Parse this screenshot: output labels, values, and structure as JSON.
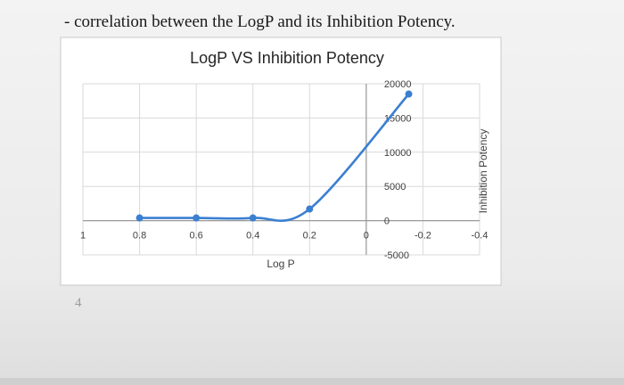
{
  "document": {
    "heading": "- correlation between the LogP and its Inhibition Potency.",
    "stray_mark": "4"
  },
  "colors": {
    "series": "#3b7fd1",
    "grid": "#d9d9d9",
    "axis": "#9a9a9a",
    "frame": "#c8c8c8",
    "text": "#404040"
  },
  "chart_data": {
    "type": "scatter",
    "title": "LogP VS Inhibition Potency",
    "xlabel": "Log P",
    "ylabel": "Inhibition Potency",
    "x_axis_reversed": true,
    "xlim": [
      1,
      -0.4
    ],
    "ylim": [
      -5000,
      20000
    ],
    "x_ticks": [
      "1",
      "0.8",
      "0.6",
      "0.4",
      "0.2",
      "0",
      "-0.2",
      "-0.4"
    ],
    "y_ticks": [
      "-5000",
      "0",
      "5000",
      "10000",
      "15000",
      "20000"
    ],
    "grid": true,
    "smooth_line": true,
    "series": [
      {
        "x": [
          0.8,
          0.6,
          0.4,
          0.2,
          -0.15
        ],
        "y": [
          400,
          400,
          400,
          1700,
          18500
        ]
      }
    ]
  }
}
